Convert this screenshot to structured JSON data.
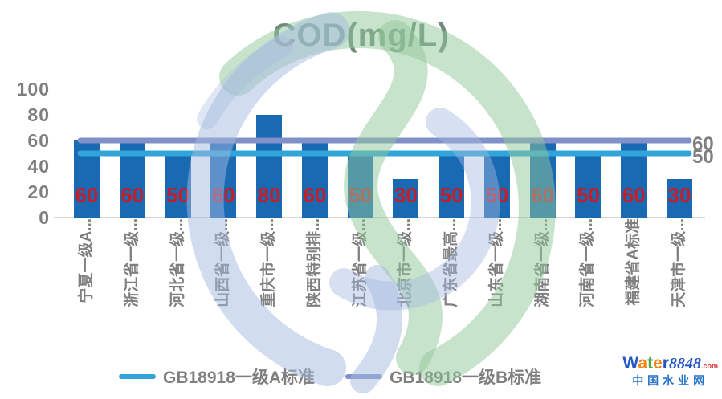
{
  "chart_data": {
    "type": "bar",
    "title": "COD(mg/L)",
    "categories": [
      "宁夏一级A...",
      "浙江省一级...",
      "河北省一级...",
      "山西省一级...",
      "重庆市一级...",
      "陕西特别排...",
      "江苏省一级...",
      "北京市一级...",
      "广东省最高...",
      "山东省一级...",
      "湖南省一级...",
      "河南省一级...",
      "福建省A标准",
      "天津市一级..."
    ],
    "values": [
      60,
      60,
      50,
      60,
      80,
      60,
      50,
      30,
      50,
      50,
      60,
      50,
      60,
      30
    ],
    "bar_color": "#1969b3",
    "value_label_color": "#c0202c",
    "y_ticks": [
      100,
      80,
      60,
      40,
      20,
      0
    ],
    "ylim": [
      0,
      100
    ],
    "grid": false,
    "xlabel": "",
    "ylabel": "",
    "legend_position": "bottom",
    "reference_lines": [
      {
        "name": "GB18918一级A标准",
        "value": 50,
        "color": "#31a5d9",
        "end_label": "50"
      },
      {
        "name": "GB18918一级B标准",
        "value": 60,
        "color": "#8090c8",
        "end_label": "60"
      }
    ]
  },
  "branding": {
    "word_letters": [
      {
        "ch": "W",
        "color": "#2456c5"
      },
      {
        "ch": "a",
        "color": "#f5830c"
      },
      {
        "ch": "t",
        "color": "#3fae49"
      },
      {
        "ch": "e",
        "color": "#f5830c"
      },
      {
        "ch": "r",
        "color": "#2456c5"
      }
    ],
    "number": "8848",
    "tld": ".com",
    "tagline": "中国水业网"
  }
}
